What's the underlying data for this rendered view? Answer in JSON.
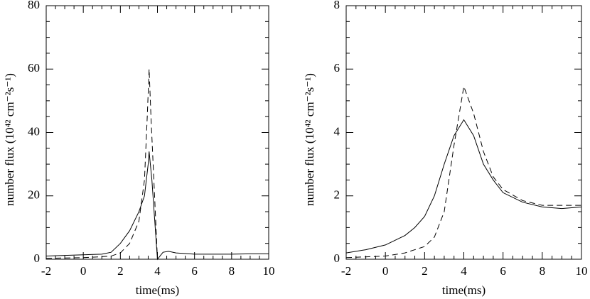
{
  "chart_data": [
    {
      "type": "line",
      "xlabel": "time(ms)",
      "ylabel": "number flux  (10⁴² cm⁻²s⁻¹)",
      "xlim": [
        -2,
        10
      ],
      "xticks": [
        -2,
        0,
        2,
        4,
        6,
        8,
        10
      ],
      "ylim": [
        0,
        80
      ],
      "yticks": [
        0,
        20,
        40,
        60,
        80
      ],
      "series": [
        {
          "color": "#000000",
          "dashed": false,
          "x": [
            -2,
            -1,
            0,
            1,
            1.5,
            2,
            2.5,
            3,
            3.3,
            3.5,
            3.55,
            3.7,
            4,
            4.3,
            4.6,
            5,
            6,
            7,
            8,
            9,
            10
          ],
          "values": [
            1.0,
            1.2,
            1.4,
            1.6,
            2.2,
            5,
            9,
            15,
            20,
            30,
            34,
            25,
            0,
            2.2,
            2.5,
            2,
            1.6,
            1.6,
            1.6,
            1.7,
            1.7
          ]
        },
        {
          "color": "#000000",
          "dashed": true,
          "x": [
            -2,
            0,
            1,
            1.5,
            2,
            2.5,
            3,
            3.3,
            3.45,
            3.55,
            3.65,
            4
          ],
          "values": [
            0.3,
            0.5,
            0.8,
            1,
            2,
            5,
            12,
            25,
            45,
            60,
            45,
            0
          ]
        }
      ]
    },
    {
      "type": "line",
      "xlabel": "time(ms)",
      "ylabel": "number flux  (10⁴² cm⁻²s⁻¹)",
      "xlim": [
        -2,
        10
      ],
      "xticks": [
        -2,
        0,
        2,
        4,
        6,
        8,
        10
      ],
      "ylim": [
        0,
        8
      ],
      "yticks": [
        0,
        2,
        4,
        6,
        8
      ],
      "series": [
        {
          "color": "#000000",
          "dashed": false,
          "x": [
            -2,
            -1,
            0,
            1,
            1.5,
            2,
            2.5,
            3,
            3.5,
            4,
            4.5,
            5,
            5.5,
            6,
            7,
            8,
            9,
            10
          ],
          "values": [
            0.2,
            0.3,
            0.45,
            0.75,
            1.0,
            1.35,
            2.0,
            3.0,
            3.9,
            4.4,
            3.9,
            3.0,
            2.5,
            2.1,
            1.8,
            1.65,
            1.6,
            1.65
          ]
        },
        {
          "color": "#000000",
          "dashed": true,
          "x": [
            -2,
            0,
            1,
            2,
            2.5,
            3,
            3.5,
            4,
            4.5,
            5,
            5.5,
            6,
            7,
            8,
            9,
            10
          ],
          "values": [
            0.05,
            0.1,
            0.2,
            0.4,
            0.7,
            1.5,
            3.6,
            5.45,
            4.6,
            3.4,
            2.6,
            2.2,
            1.85,
            1.7,
            1.7,
            1.7
          ]
        }
      ]
    }
  ]
}
